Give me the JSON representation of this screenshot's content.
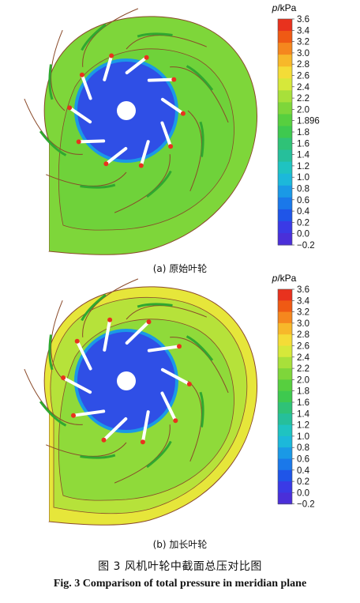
{
  "panels": [
    {
      "caption": "(a)  原始叶轮",
      "colorbar": {
        "title_var": "p",
        "title_unit": "/kPa",
        "ticks": [
          "3.6",
          "3.4",
          "3.2",
          "3.0",
          "2.8",
          "2.6",
          "2.4",
          "2.2",
          "2.0",
          "1.896",
          "1.8",
          "1.6",
          "1.4",
          "1.2",
          "1.0",
          "0.8",
          "0.6",
          "0.4",
          "0.2",
          "0.0",
          "−0.2"
        ],
        "colors": [
          "#e8321e",
          "#ef5a14",
          "#f5871e",
          "#f7b82a",
          "#f4dc37",
          "#d6e83a",
          "#a8e03a",
          "#7ed63a",
          "#57cf3f",
          "#3ec94f",
          "#2fc277",
          "#26bf9b",
          "#1fc3c1",
          "#1cb8da",
          "#1a99e6",
          "#1a78ea",
          "#1f55e8",
          "#3a3ae6",
          "#4a2fd9"
        ]
      },
      "field": {
        "outer": "#7ed63a",
        "inner": "#2f4fe6",
        "contour": "#8a4a2a"
      }
    },
    {
      "caption": "(b)  加长叶轮",
      "colorbar": {
        "title_var": "p",
        "title_unit": "/kPa",
        "ticks": [
          "3.6",
          "3.4",
          "3.2",
          "3.0",
          "2.8",
          "2.6",
          "2.4",
          "2.2",
          "2.0",
          "1.8",
          "1.6",
          "1.4",
          "1.2",
          "1.0",
          "0.8",
          "0.6",
          "0.4",
          "0.2",
          "0.0",
          "−0.2"
        ],
        "colors": [
          "#e8321e",
          "#ef5a14",
          "#f5871e",
          "#f7b82a",
          "#f4dc37",
          "#d6e83a",
          "#a8e03a",
          "#7ed63a",
          "#57cf3f",
          "#3ec94f",
          "#2fc277",
          "#26bf9b",
          "#1fc3c1",
          "#1cb8da",
          "#1a99e6",
          "#1a78ea",
          "#1f55e8",
          "#3a3ae6",
          "#4a2fd9"
        ]
      },
      "field": {
        "outer": "#e6e63a",
        "inner": "#2f4fe6",
        "contour": "#8a4a2a"
      }
    }
  ],
  "figure": {
    "title_cn": "图 3    风机叶轮中截面总压对比图",
    "title_en": "Fig. 3    Comparison of total pressure in meridian plane"
  }
}
